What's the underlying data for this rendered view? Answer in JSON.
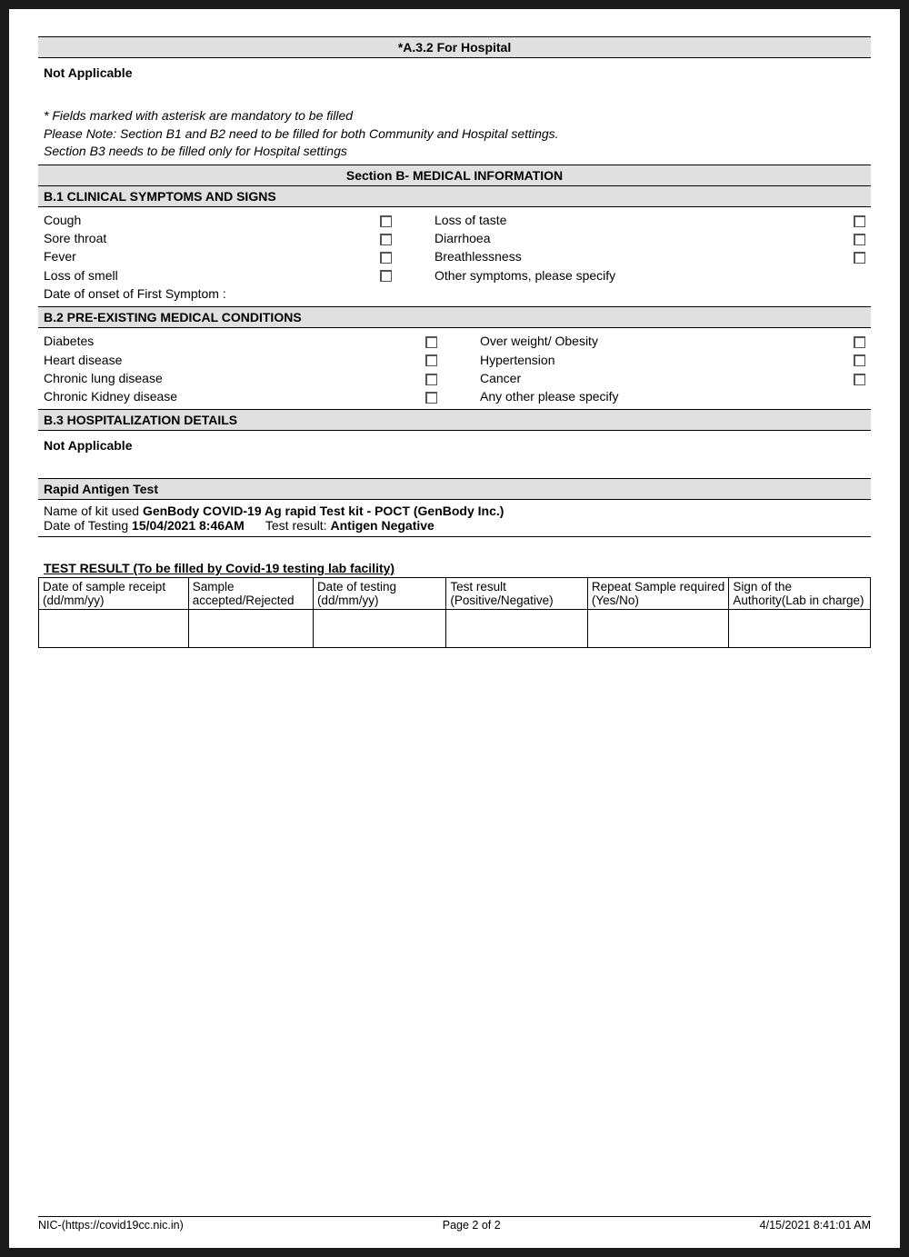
{
  "colors": {
    "page_bg": "#ffffff",
    "outer_bg": "#1a1a1a",
    "header_bg": "#e0e0e0",
    "border": "#000000",
    "text": "#000000"
  },
  "a32": {
    "title": "*A.3.2 For Hospital",
    "status": "Not Applicable"
  },
  "notes": {
    "line1": "* Fields marked with asterisk are mandatory to be filled",
    "line2": "Please Note: Section B1 and B2 need to be filled for both Community and Hospital settings.",
    "line3": "Section B3 needs to be filled only for Hospital settings"
  },
  "sectionB": {
    "title": "Section B- MEDICAL INFORMATION"
  },
  "b1": {
    "title": "B.1 CLINICAL SYMPTOMS AND SIGNS",
    "rows": [
      {
        "left": "Cough",
        "left_cb": true,
        "right": "Loss of taste",
        "right_cb": true
      },
      {
        "left": "Sore throat",
        "left_cb": true,
        "right": "Diarrhoea",
        "right_cb": true
      },
      {
        "left": "Fever",
        "left_cb": true,
        "right": "Breathlessness",
        "right_cb": true
      },
      {
        "left": "Loss of smell",
        "left_cb": true,
        "right": "Other symptoms, please specify",
        "right_cb": false
      }
    ],
    "onset_label": "Date of onset of First Symptom :"
  },
  "b2": {
    "title": "B.2 PRE-EXISTING MEDICAL CONDITIONS",
    "rows": [
      {
        "left": "Diabetes",
        "left_cb": true,
        "right": "Over weight/ Obesity",
        "right_cb": true
      },
      {
        "left": "Heart disease",
        "left_cb": true,
        "right": "Hypertension",
        "right_cb": true
      },
      {
        "left": "Chronic lung disease",
        "left_cb": true,
        "right": "Cancer",
        "right_cb": true
      },
      {
        "left": "Chronic Kidney disease",
        "left_cb": true,
        "right": "Any other please specify",
        "right_cb": false
      }
    ]
  },
  "b3": {
    "title": "B.3 HOSPITALIZATION DETAILS",
    "status": "Not Applicable"
  },
  "rat": {
    "title": "Rapid Antigen Test",
    "kit_label": "Name of kit used ",
    "kit_value": "GenBody COVID-19 Ag rapid Test kit - POCT (GenBody Inc.)",
    "date_label": "Date of Testing ",
    "date_value": "15/04/2021 8:46AM",
    "result_label": "Test result: ",
    "result_value": "Antigen Negative"
  },
  "result_table": {
    "title": "TEST RESULT (To be filled by Covid-19 testing lab facility)",
    "columns": [
      "Date of sample receipt (dd/mm/yy)",
      "Sample accepted/Rejected",
      "Date of testing (dd/mm/yy)",
      "Test result (Positive/Negative)",
      "Repeat Sample required (Yes/No)",
      "Sign of the Authority(Lab in charge)"
    ],
    "col_widths_pct": [
      18,
      15,
      16,
      17,
      17,
      17
    ]
  },
  "footer": {
    "left": "NIC-(https://covid19cc.nic.in)",
    "center": "Page 2 of 2",
    "right": "4/15/2021 8:41:01 AM"
  }
}
